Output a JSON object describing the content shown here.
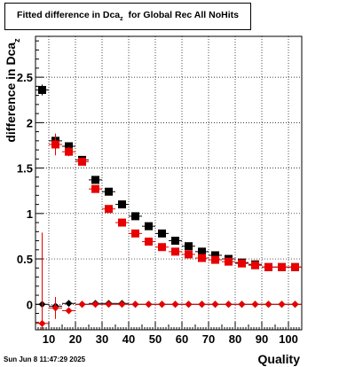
{
  "chart_data": {
    "type": "scatter",
    "title": "Fitted difference in Dca",
    "title_subscript": "z",
    "title_suffix": "for Global Rec All NoHits",
    "xlabel": "Quality",
    "ylabel": "difference in Dca",
    "ylabel_subscript": "z",
    "xlim": [
      5,
      105
    ],
    "ylim": [
      -0.28,
      2.95
    ],
    "x_ticks": [
      10,
      20,
      30,
      40,
      50,
      60,
      70,
      80,
      90,
      100
    ],
    "y_ticks": [
      0,
      0.5,
      1,
      1.5,
      2,
      2.5
    ],
    "y_tick_labels": [
      "0",
      "0.5",
      "1",
      "1.5",
      "2",
      "2.5"
    ],
    "grid": true,
    "timestamp": "Sun Jun  8 11:47:29 2025",
    "series": [
      {
        "color": "#000000",
        "marker": "square",
        "x": [
          7.5,
          12.5,
          17.5,
          22.5,
          27.5,
          32.5,
          37.5,
          42.5,
          47.5,
          52.5,
          57.5,
          62.5,
          67.5,
          72.5,
          77.5,
          82.5,
          87.5,
          92.5,
          97.5,
          102.5
        ],
        "y": [
          2.36,
          1.8,
          1.74,
          1.59,
          1.37,
          1.24,
          1.1,
          0.97,
          0.86,
          0.78,
          0.7,
          0.64,
          0.58,
          0.54,
          0.5,
          0.46,
          0.44,
          0.41,
          0.41,
          0.41
        ],
        "yerr": [
          0.06,
          0.04,
          0.03,
          0.02,
          0.02,
          0.01,
          0.01,
          0.01,
          0.01,
          0.01,
          0.01,
          0.01,
          0.01,
          0.01,
          0.01,
          0.01,
          0.01,
          0.01,
          0.01,
          0.01
        ]
      },
      {
        "color": "#e80000",
        "marker": "square",
        "x": [
          12.5,
          17.5,
          22.5,
          27.5,
          32.5,
          37.5,
          42.5,
          47.5,
          52.5,
          57.5,
          62.5,
          67.5,
          72.5,
          77.5,
          82.5,
          87.5,
          92.5,
          97.5,
          102.5
        ],
        "y": [
          1.76,
          1.68,
          1.57,
          1.27,
          1.05,
          0.9,
          0.78,
          0.69,
          0.63,
          0.58,
          0.55,
          0.51,
          0.49,
          0.47,
          0.45,
          0.43,
          0.41,
          0.41,
          0.41
        ],
        "yerr": [
          0.12,
          0.05,
          0.03,
          0.02,
          0.02,
          0.01,
          0.01,
          0.01,
          0.01,
          0.01,
          0.01,
          0.01,
          0.01,
          0.01,
          0.01,
          0.01,
          0.01,
          0.01,
          0.01
        ]
      },
      {
        "color": "#000000",
        "marker": "diamond",
        "x": [
          7.5,
          12.5,
          17.5,
          22.5,
          27.5,
          32.5,
          37.5,
          42.5,
          47.5,
          52.5,
          57.5,
          62.5,
          67.5,
          72.5,
          77.5,
          82.5,
          87.5,
          92.5,
          97.5,
          102.5
        ],
        "y": [
          0.0,
          -0.02,
          0.01,
          0.0,
          0.01,
          0.01,
          0.01,
          0.0,
          0.0,
          0.0,
          0.0,
          0.0,
          0.0,
          0.0,
          0.0,
          0.0,
          0.0,
          0.0,
          0.0,
          0.0
        ],
        "yerr": [
          0.0,
          0.1,
          0.0,
          0.0,
          0.0,
          0.0,
          0.0,
          0.0,
          0.0,
          0.0,
          0.0,
          0.0,
          0.0,
          0.0,
          0.0,
          0.0,
          0.0,
          0.0,
          0.0,
          0.0
        ]
      },
      {
        "color": "#e80000",
        "marker": "diamond",
        "x": [
          7.5,
          12.5,
          17.5,
          22.5,
          27.5,
          32.5,
          37.5,
          42.5,
          47.5,
          52.5,
          57.5,
          62.5,
          67.5,
          72.5,
          77.5,
          82.5,
          87.5,
          92.5,
          97.5,
          102.5
        ],
        "y": [
          -0.21,
          -0.04,
          -0.07,
          0.0,
          0.0,
          0.0,
          0.0,
          0.0,
          0.0,
          0.0,
          0.0,
          0.0,
          0.0,
          0.0,
          0.0,
          0.0,
          0.0,
          0.0,
          0.0,
          0.0
        ],
        "yerr": [
          1.0,
          0.12,
          0.03,
          0.0,
          0.0,
          0.0,
          0.0,
          0.0,
          0.0,
          0.0,
          0.0,
          0.0,
          0.0,
          0.0,
          0.0,
          0.0,
          0.0,
          0.0,
          0.0,
          0.0
        ]
      }
    ]
  }
}
